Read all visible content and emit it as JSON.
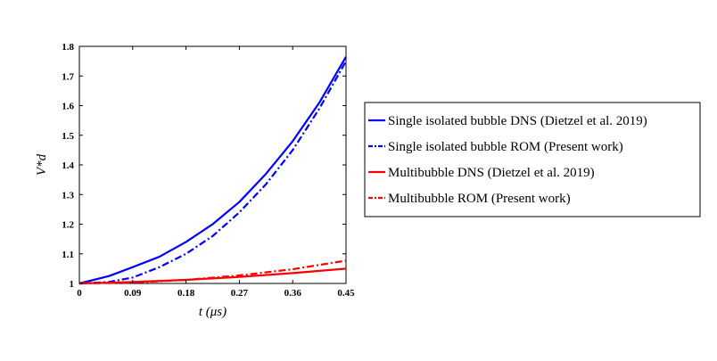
{
  "chart_data": {
    "type": "line",
    "title": "",
    "xlabel": "t (μs)",
    "ylabel": "V*d",
    "xlim": [
      0,
      0.45
    ],
    "ylim": [
      1,
      1.8
    ],
    "xticks": [
      0,
      0.09,
      0.18,
      0.27,
      0.36,
      0.45
    ],
    "xtick_labels": [
      "0",
      "0.09",
      "0.18",
      "0.27",
      "0.36",
      "0.45"
    ],
    "yticks": [
      1,
      1.1,
      1.2,
      1.3,
      1.4,
      1.5,
      1.6,
      1.7,
      1.8
    ],
    "ytick_labels": [
      "1",
      "1.1",
      "1.2",
      "1.3",
      "1.4",
      "1.5",
      "1.6",
      "1.7",
      "1.8"
    ],
    "grid": false,
    "legend_position": "outside-right",
    "series": [
      {
        "name": "Single isolated bubble DNS (Dietzel et al. 2019)",
        "color": "#0000ff",
        "style": "solid",
        "x": [
          0,
          0.05,
          0.09,
          0.135,
          0.18,
          0.225,
          0.27,
          0.315,
          0.36,
          0.405,
          0.45
        ],
        "y": [
          1.0,
          1.025,
          1.055,
          1.09,
          1.14,
          1.2,
          1.275,
          1.37,
          1.48,
          1.61,
          1.765
        ]
      },
      {
        "name": "Single isolated bubble ROM (Present work)",
        "color": "#0000ff",
        "style": "dashdot",
        "x": [
          0,
          0.05,
          0.09,
          0.135,
          0.18,
          0.225,
          0.27,
          0.315,
          0.36,
          0.405,
          0.45
        ],
        "y": [
          1.0,
          1.005,
          1.02,
          1.055,
          1.1,
          1.16,
          1.24,
          1.335,
          1.45,
          1.59,
          1.75
        ]
      },
      {
        "name": "Multibubble DNS (Dietzel et al. 2019)",
        "color": "#ff0000",
        "style": "solid",
        "x": [
          0,
          0.09,
          0.18,
          0.27,
          0.36,
          0.45
        ],
        "y": [
          1.0,
          1.005,
          1.012,
          1.022,
          1.035,
          1.05
        ]
      },
      {
        "name": "Multibubble ROM (Present work)",
        "color": "#ff0000",
        "style": "dashdot",
        "x": [
          0,
          0.09,
          0.18,
          0.27,
          0.36,
          0.45
        ],
        "y": [
          1.0,
          1.003,
          1.012,
          1.027,
          1.048,
          1.077
        ]
      }
    ]
  }
}
